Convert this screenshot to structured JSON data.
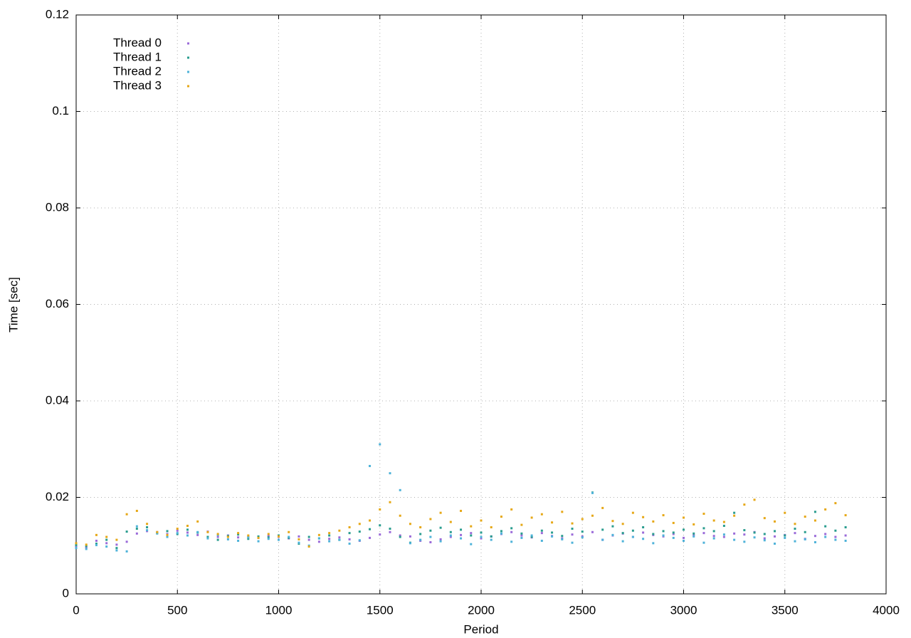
{
  "chart_data": {
    "type": "scatter",
    "y_label": "Time [sec]",
    "x_label": "Period",
    "xlim": [
      0,
      4000
    ],
    "xticks": [
      0,
      500,
      1000,
      1500,
      2000,
      2500,
      3000,
      3500,
      4000
    ],
    "ylim": [
      0,
      0.12
    ],
    "yticks": [
      0,
      0.02,
      0.04,
      0.06,
      0.08,
      0.1,
      0.12
    ],
    "grid": true,
    "legend": "upper-left",
    "x": [
      0,
      50,
      100,
      150,
      200,
      250,
      300,
      350,
      400,
      450,
      500,
      550,
      600,
      650,
      700,
      750,
      800,
      850,
      900,
      950,
      1000,
      1050,
      1100,
      1150,
      1200,
      1250,
      1300,
      1350,
      1400,
      1450,
      1500,
      1550,
      1600,
      1650,
      1700,
      1750,
      1800,
      1850,
      1900,
      1950,
      2000,
      2050,
      2100,
      2150,
      2200,
      2250,
      2300,
      2350,
      2400,
      2450,
      2500,
      2550,
      2600,
      2650,
      2700,
      2750,
      2800,
      2850,
      2900,
      2950,
      3000,
      3050,
      3100,
      3150,
      3200,
      3250,
      3300,
      3350,
      3400,
      3450,
      3500,
      3550,
      3600,
      3650,
      3700,
      3750,
      3800
    ],
    "series": [
      {
        "name": "Thread 0",
        "color": "#9b6bd9",
        "values": [
          0.0098,
          0.0096,
          0.011,
          0.0105,
          0.0102,
          0.0108,
          0.0125,
          0.013,
          0.0128,
          0.0124,
          0.0131,
          0.0127,
          0.0122,
          0.0129,
          0.0118,
          0.0121,
          0.0117,
          0.0119,
          0.0116,
          0.012,
          0.0118,
          0.0115,
          0.0119,
          0.0112,
          0.0108,
          0.0114,
          0.0117,
          0.0113,
          0.011,
          0.0116,
          0.0123,
          0.0128,
          0.0121,
          0.0119,
          0.011,
          0.0107,
          0.0113,
          0.0118,
          0.0122,
          0.0126,
          0.0115,
          0.0119,
          0.0124,
          0.0128,
          0.0121,
          0.0117,
          0.0126,
          0.012,
          0.0115,
          0.0123,
          0.0119,
          0.0128,
          0.0112,
          0.0121,
          0.0125,
          0.0118,
          0.0127,
          0.0122,
          0.0119,
          0.0124,
          0.0116,
          0.0121,
          0.0126,
          0.012,
          0.0118,
          0.0125,
          0.0123,
          0.0128,
          0.0115,
          0.0119,
          0.0122,
          0.0126,
          0.0114,
          0.012,
          0.0124,
          0.0118,
          0.0121
        ]
      },
      {
        "name": "Thread 1",
        "color": "#2a9d8f",
        "values": [
          0.0101,
          0.0099,
          0.0104,
          0.0112,
          0.0095,
          0.0129,
          0.0135,
          0.0138,
          0.0126,
          0.013,
          0.0124,
          0.0133,
          0.0127,
          0.0118,
          0.0112,
          0.012,
          0.0123,
          0.0114,
          0.0119,
          0.0117,
          0.0121,
          0.0116,
          0.0104,
          0.0118,
          0.0115,
          0.0121,
          0.0112,
          0.0126,
          0.0129,
          0.0134,
          0.0142,
          0.0135,
          0.0118,
          0.0106,
          0.0124,
          0.0131,
          0.0137,
          0.0128,
          0.0133,
          0.0121,
          0.0127,
          0.0119,
          0.013,
          0.0136,
          0.0125,
          0.0118,
          0.0131,
          0.0127,
          0.012,
          0.0135,
          0.0129,
          0.021,
          0.0133,
          0.014,
          0.0126,
          0.0131,
          0.0138,
          0.0124,
          0.013,
          0.0127,
          0.0133,
          0.0125,
          0.0136,
          0.013,
          0.0141,
          0.0168,
          0.0132,
          0.0127,
          0.0124,
          0.013,
          0.0121,
          0.0135,
          0.0128,
          0.017,
          0.014,
          0.0131,
          0.0138
        ]
      },
      {
        "name": "Thread 2",
        "color": "#4fb3d9",
        "values": [
          0.0095,
          0.0093,
          0.0101,
          0.0098,
          0.009,
          0.0088,
          0.014,
          0.0132,
          0.0125,
          0.0118,
          0.0126,
          0.0121,
          0.0128,
          0.0115,
          0.0122,
          0.0113,
          0.011,
          0.0117,
          0.0109,
          0.0114,
          0.0112,
          0.0118,
          0.0106,
          0.01,
          0.0115,
          0.0109,
          0.0112,
          0.0104,
          0.0111,
          0.0265,
          0.031,
          0.025,
          0.0215,
          0.0105,
          0.0112,
          0.0118,
          0.0109,
          0.0121,
          0.0115,
          0.0103,
          0.0118,
          0.0112,
          0.0125,
          0.0108,
          0.0116,
          0.0121,
          0.011,
          0.0119,
          0.0113,
          0.0106,
          0.0117,
          0.0209,
          0.0112,
          0.0122,
          0.0109,
          0.0118,
          0.0114,
          0.0105,
          0.0121,
          0.0116,
          0.011,
          0.0119,
          0.0106,
          0.0115,
          0.0123,
          0.0112,
          0.0108,
          0.0117,
          0.0111,
          0.0104,
          0.0116,
          0.0109,
          0.0113,
          0.0107,
          0.0118,
          0.0112,
          0.011
        ]
      },
      {
        "name": "Thread 3",
        "color": "#e6a817",
        "values": [
          0.0105,
          0.0102,
          0.0122,
          0.0118,
          0.0112,
          0.0165,
          0.0172,
          0.0145,
          0.0128,
          0.0122,
          0.0135,
          0.0141,
          0.015,
          0.0128,
          0.0124,
          0.0118,
          0.0126,
          0.0121,
          0.0116,
          0.0124,
          0.0119,
          0.0128,
          0.0113,
          0.0098,
          0.0122,
          0.0126,
          0.0131,
          0.0138,
          0.0145,
          0.0152,
          0.0175,
          0.019,
          0.0162,
          0.0145,
          0.0138,
          0.0155,
          0.0168,
          0.0149,
          0.0172,
          0.014,
          0.0152,
          0.0138,
          0.016,
          0.0175,
          0.0143,
          0.0158,
          0.0165,
          0.0148,
          0.017,
          0.0146,
          0.0155,
          0.0162,
          0.0178,
          0.0151,
          0.0145,
          0.0168,
          0.0159,
          0.015,
          0.0163,
          0.0147,
          0.0158,
          0.0144,
          0.0166,
          0.0152,
          0.0149,
          0.0162,
          0.0185,
          0.0195,
          0.0157,
          0.015,
          0.0168,
          0.0145,
          0.016,
          0.0152,
          0.0175,
          0.0188,
          0.0163
        ]
      }
    ]
  }
}
